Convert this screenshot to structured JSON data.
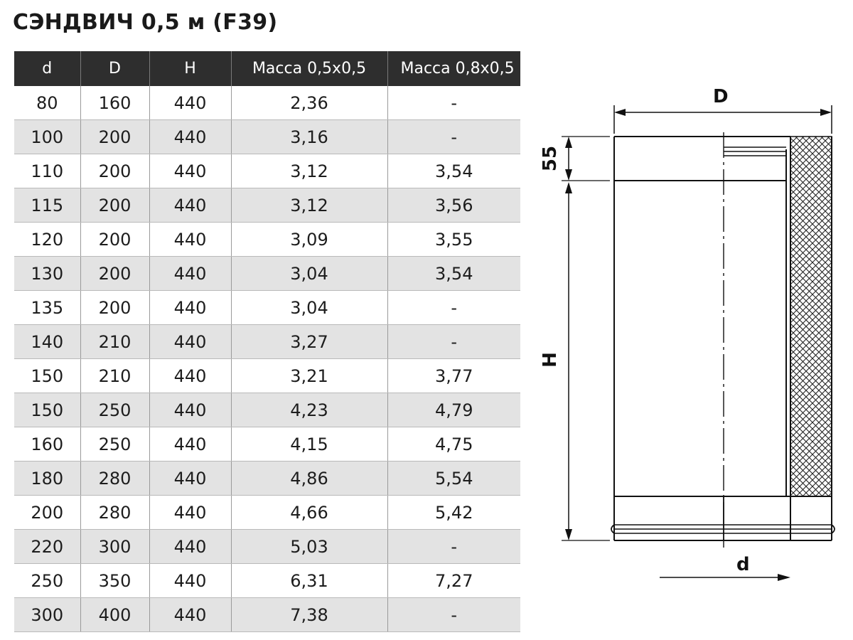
{
  "title": "СЭНДВИЧ 0,5 м (F39)",
  "table": {
    "columns": [
      "d",
      "D",
      "H",
      "Масса 0,5х0,5",
      "Масса 0,8х0,5"
    ],
    "rows": [
      [
        "80",
        "160",
        "440",
        "2,36",
        "-"
      ],
      [
        "100",
        "200",
        "440",
        "3,16",
        "-"
      ],
      [
        "110",
        "200",
        "440",
        "3,12",
        "3,54"
      ],
      [
        "115",
        "200",
        "440",
        "3,12",
        "3,56"
      ],
      [
        "120",
        "200",
        "440",
        "3,09",
        "3,55"
      ],
      [
        "130",
        "200",
        "440",
        "3,04",
        "3,54"
      ],
      [
        "135",
        "200",
        "440",
        "3,04",
        "-"
      ],
      [
        "140",
        "210",
        "440",
        "3,27",
        "-"
      ],
      [
        "150",
        "210",
        "440",
        "3,21",
        "3,77"
      ],
      [
        "150",
        "250",
        "440",
        "4,23",
        "4,79"
      ],
      [
        "160",
        "250",
        "440",
        "4,15",
        "4,75"
      ],
      [
        "180",
        "280",
        "440",
        "4,86",
        "5,54"
      ],
      [
        "200",
        "280",
        "440",
        "4,66",
        "5,42"
      ],
      [
        "220",
        "300",
        "440",
        "5,03",
        "-"
      ],
      [
        "250",
        "350",
        "440",
        "6,31",
        "7,27"
      ],
      [
        "300",
        "400",
        "440",
        "7,38",
        "-"
      ]
    ]
  },
  "drawing": {
    "outer_diameter_label": "D",
    "height_label": "H",
    "socket_label": "55",
    "inner_diameter_label": "d"
  }
}
